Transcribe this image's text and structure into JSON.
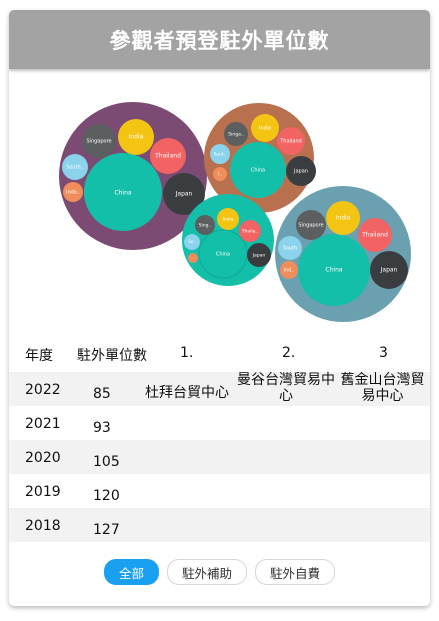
{
  "header": {
    "title": "參觀者預登駐外單位數"
  },
  "colors": {
    "accent": "#1aa0f0",
    "china": "#13bfa9",
    "india": "#f4c412",
    "thailand": "#f26363",
    "japan": "#3a3d40",
    "singapore": "#5b5f5f",
    "south": "#8bd3ed",
    "indonesia": "#f08d5a",
    "purple": "#7b4b74",
    "brown": "#b8704f",
    "teal": "#13bfa9",
    "steel": "#6aa0b0"
  },
  "bubbles": {
    "group1": {
      "china": "China",
      "india": "India",
      "thailand": "Thailand",
      "japan": "Japan",
      "singapore": "Singapore",
      "south": "South..",
      "indo": "Indo.."
    },
    "group2": {
      "china": "China",
      "india": "India",
      "thailand": "Thailand",
      "japan": "Japan",
      "singapore": "Singa..",
      "south": "Sout..",
      "indo": "I.."
    },
    "group3": {
      "china": "China",
      "india": "India",
      "thailand": "Thaila..",
      "japan": "Japan",
      "singapore": "Sing..",
      "south": "So..",
      "indo": ""
    },
    "group4": {
      "china": "China",
      "india": "India",
      "thailand": "Thailand",
      "japan": "Japan",
      "singapore": "Singapore",
      "south": "South",
      "indo": "Ind.."
    }
  },
  "table": {
    "headers": {
      "year": "年度",
      "count": "駐外單位數",
      "c1": "1.",
      "c2": "2.",
      "c3": "3"
    },
    "rows": [
      {
        "year": "2022",
        "count": "85",
        "c1": "杜拜台貿中心",
        "c2": "曼谷台灣貿易中心",
        "c3": "舊金山台灣貿易中心"
      },
      {
        "year": "2021",
        "count": "93"
      },
      {
        "year": "2020",
        "count": "105"
      },
      {
        "year": "2019",
        "count": "120"
      },
      {
        "year": "2018",
        "count": "127"
      }
    ]
  },
  "filters": {
    "all": "全部",
    "subsidy": "駐外補助",
    "self": "駐外自費"
  }
}
